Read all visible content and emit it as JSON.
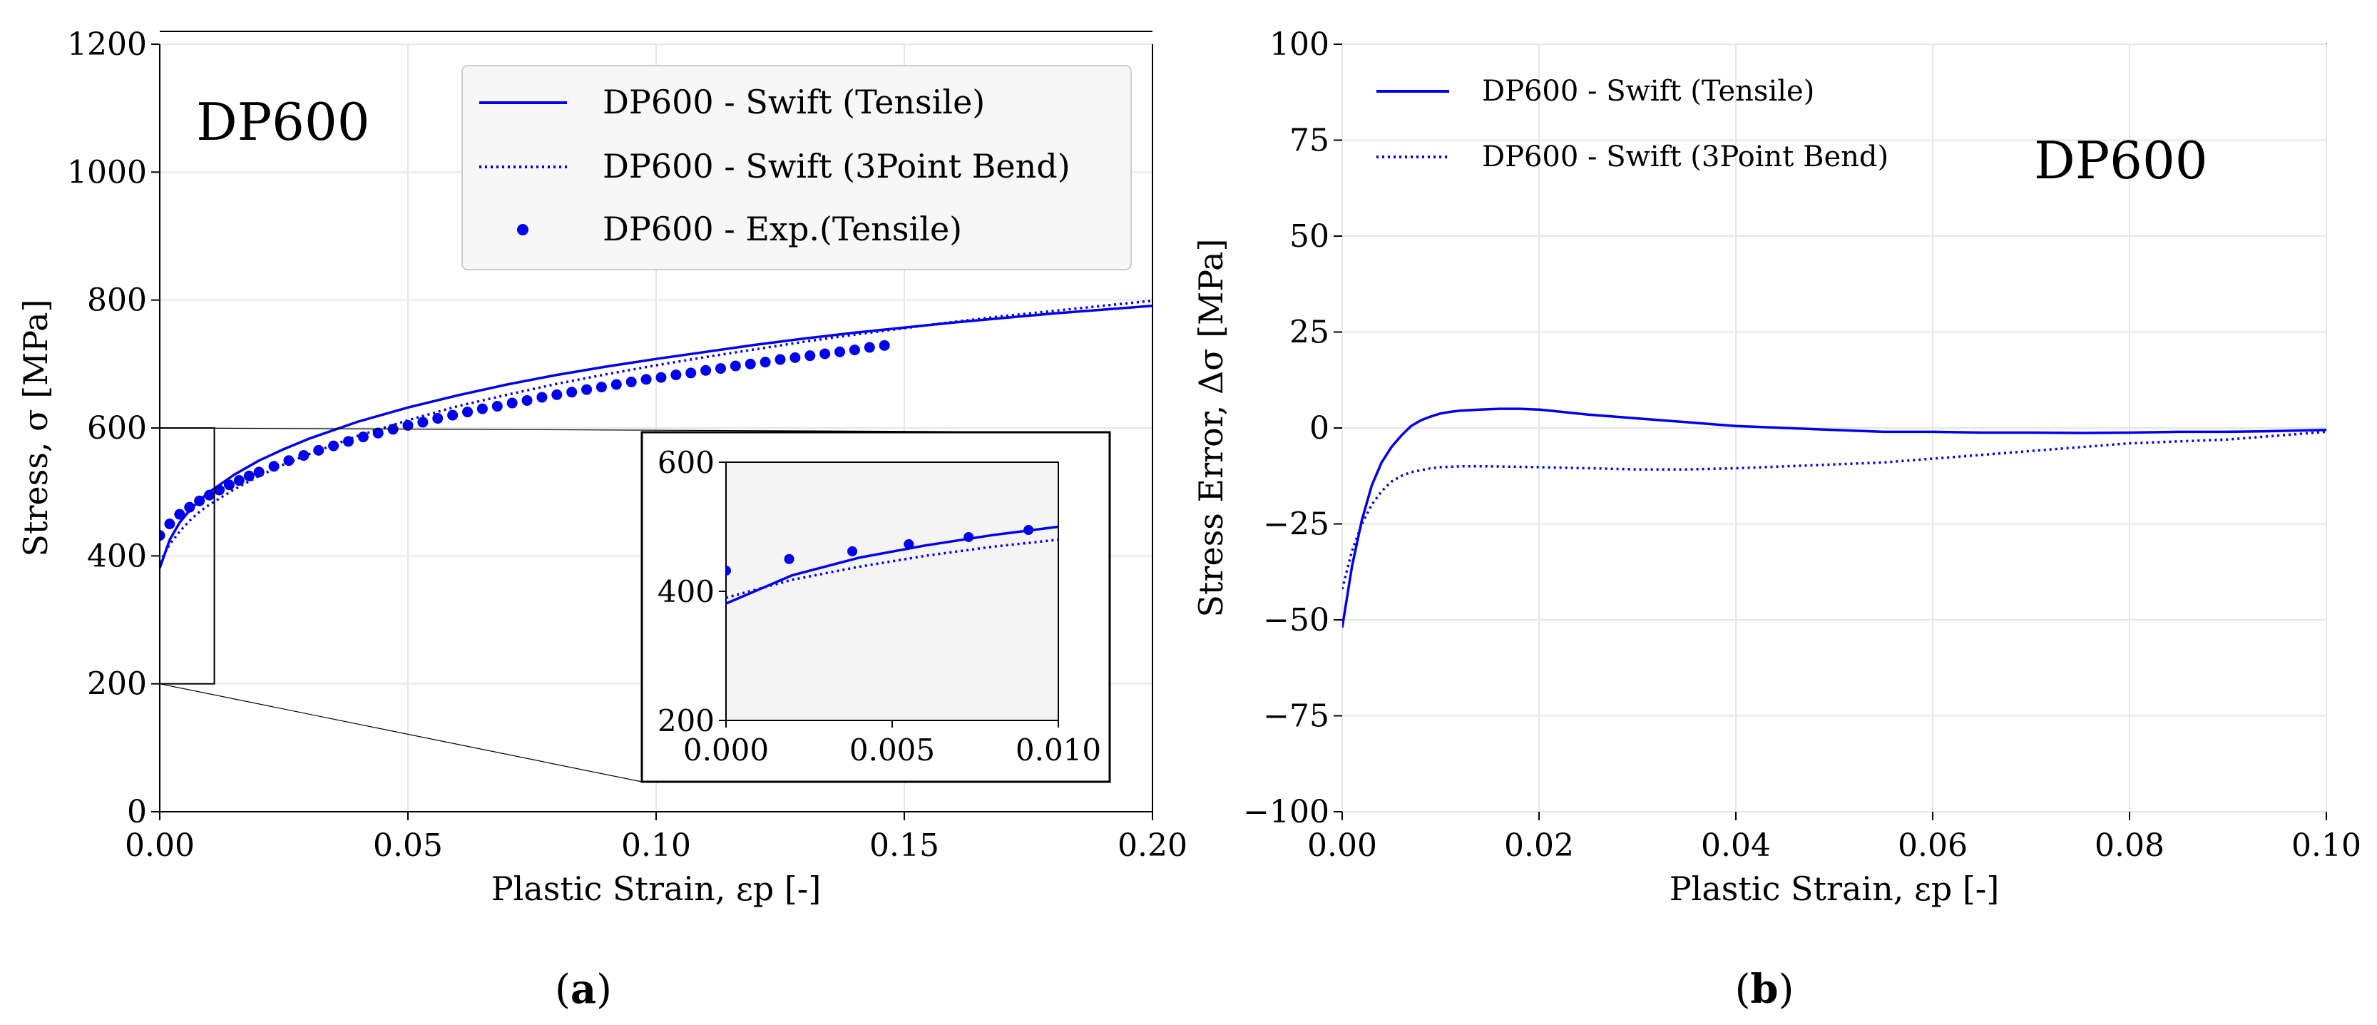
{
  "chart_data": [
    {
      "panel": "(a)",
      "panel_label": {
        "open": "(",
        "letter": "a",
        "close": ")"
      },
      "type": "line",
      "title": "DP600",
      "xlabel": "Plastic Strain, εp [-]",
      "ylabel": "Stress, σ [MPa]",
      "xlim": [
        0.0,
        0.2
      ],
      "ylim": [
        0,
        1200
      ],
      "xticks": [
        0.0,
        0.05,
        0.1,
        0.15,
        0.2
      ],
      "xtick_labels": [
        "0.00",
        "0.05",
        "0.10",
        "0.15",
        "0.20"
      ],
      "yticks": [
        0,
        200,
        400,
        600,
        800,
        1000,
        1200
      ],
      "ytick_labels": [
        "0",
        "200",
        "400",
        "600",
        "800",
        "1000",
        "1200"
      ],
      "grid": true,
      "legend_position": "top-right",
      "color": "#0000ee",
      "series": [
        {
          "name": "DP600 - Swift (Tensile)",
          "style": "solid",
          "x": [
            0.0,
            0.002,
            0.004,
            0.006,
            0.008,
            0.01,
            0.015,
            0.02,
            0.025,
            0.03,
            0.04,
            0.05,
            0.06,
            0.07,
            0.08,
            0.09,
            0.1,
            0.11,
            0.12,
            0.13,
            0.14,
            0.15,
            0.16,
            0.17,
            0.18,
            0.19,
            0.2
          ],
          "values": [
            381,
            425,
            452,
            471,
            487,
            500,
            527,
            549,
            567,
            583,
            610,
            632,
            651,
            668,
            683,
            696,
            708,
            719,
            730,
            740,
            749,
            757,
            765,
            772,
            779,
            785,
            791
          ]
        },
        {
          "name": "DP600 - Swift (3Point Bend)",
          "style": "dotted",
          "x": [
            0.0,
            0.002,
            0.004,
            0.006,
            0.008,
            0.01,
            0.015,
            0.02,
            0.025,
            0.03,
            0.04,
            0.05,
            0.06,
            0.07,
            0.08,
            0.09,
            0.1,
            0.11,
            0.12,
            0.13,
            0.14,
            0.15,
            0.16,
            0.17,
            0.18,
            0.19,
            0.2
          ],
          "values": [
            390,
            418,
            438,
            455,
            469,
            480,
            504,
            525,
            543,
            559,
            588,
            612,
            634,
            652,
            669,
            684,
            698,
            711,
            723,
            735,
            746,
            756,
            766,
            775,
            783,
            791,
            799
          ]
        },
        {
          "name": "DP600 - Exp.(Tensile)",
          "style": "markers",
          "x": [
            0.0,
            0.002,
            0.004,
            0.006,
            0.008,
            0.01,
            0.012,
            0.014,
            0.016,
            0.018,
            0.02,
            0.023,
            0.026,
            0.029,
            0.032,
            0.035,
            0.038,
            0.041,
            0.044,
            0.047,
            0.05,
            0.053,
            0.056,
            0.059,
            0.062,
            0.065,
            0.068,
            0.071,
            0.074,
            0.077,
            0.08,
            0.083,
            0.086,
            0.089,
            0.092,
            0.095,
            0.098,
            0.101,
            0.104,
            0.107,
            0.11,
            0.113,
            0.116,
            0.119,
            0.122,
            0.125,
            0.128,
            0.131,
            0.134,
            0.137,
            0.14,
            0.143,
            0.146
          ],
          "values": [
            432,
            450,
            465,
            476,
            486,
            495,
            503,
            511,
            518,
            525,
            531,
            540,
            549,
            557,
            565,
            572,
            579,
            586,
            592,
            598,
            604,
            609,
            615,
            620,
            625,
            630,
            634,
            639,
            643,
            648,
            652,
            656,
            660,
            664,
            668,
            672,
            676,
            679,
            683,
            686,
            690,
            693,
            697,
            700,
            703,
            707,
            710,
            713,
            716,
            719,
            722,
            726,
            729
          ]
        }
      ],
      "inset": {
        "xlim": [
          0.0,
          0.01
        ],
        "ylim": [
          200,
          600
        ],
        "xticks": [
          0.0,
          0.005,
          0.01
        ],
        "xtick_labels": [
          "0.000",
          "0.005",
          "0.010"
        ],
        "yticks": [
          200,
          400,
          600
        ],
        "ytick_labels": [
          "200",
          "400",
          "600"
        ],
        "zoom_region": {
          "x": [
            0.0,
            0.011
          ],
          "y": [
            200,
            600
          ]
        },
        "exp_markers": {
          "x": [
            0.0,
            0.0019,
            0.0038,
            0.0055,
            0.0073,
            0.0091
          ],
          "values": [
            432,
            450,
            462,
            473,
            484,
            495
          ]
        }
      }
    },
    {
      "panel": "(b)",
      "panel_label": {
        "open": "(",
        "letter": "b",
        "close": ")"
      },
      "type": "line",
      "title": "DP600",
      "xlabel": "Plastic Strain, εp [-]",
      "ylabel": "Stress Error, Δσ [MPa]",
      "xlim": [
        0.0,
        0.1
      ],
      "ylim": [
        -100,
        100
      ],
      "xticks": [
        0.0,
        0.02,
        0.04,
        0.06,
        0.08,
        0.1
      ],
      "xtick_labels": [
        "0.00",
        "0.02",
        "0.04",
        "0.06",
        "0.08",
        "0.10"
      ],
      "yticks": [
        -100,
        -75,
        -50,
        -25,
        0,
        25,
        50,
        75,
        100
      ],
      "ytick_labels": [
        "−100",
        "−75",
        "−50",
        "−25",
        "0",
        "25",
        "50",
        "75",
        "100"
      ],
      "grid": true,
      "legend_position": "top-left",
      "color": "#0000ee",
      "series": [
        {
          "name": "DP600 - Swift (Tensile)",
          "style": "solid",
          "x": [
            0.0,
            0.001,
            0.002,
            0.003,
            0.004,
            0.005,
            0.006,
            0.007,
            0.008,
            0.009,
            0.01,
            0.011,
            0.012,
            0.014,
            0.016,
            0.018,
            0.02,
            0.025,
            0.03,
            0.035,
            0.04,
            0.045,
            0.05,
            0.055,
            0.06,
            0.065,
            0.07,
            0.075,
            0.08,
            0.085,
            0.09,
            0.095,
            0.1
          ],
          "values": [
            -52,
            -36,
            -24,
            -15,
            -9,
            -5,
            -2,
            0.5,
            2,
            3,
            3.8,
            4.2,
            4.5,
            4.8,
            5,
            5,
            4.8,
            3.5,
            2.5,
            1.5,
            0.5,
            0,
            -0.5,
            -1,
            -1,
            -1.2,
            -1.2,
            -1.3,
            -1.2,
            -1,
            -1,
            -0.8,
            -0.5
          ]
        },
        {
          "name": "DP600 - Swift (3Point Bend)",
          "style": "dotted",
          "x": [
            0.0,
            0.001,
            0.002,
            0.003,
            0.004,
            0.005,
            0.006,
            0.007,
            0.008,
            0.009,
            0.01,
            0.012,
            0.015,
            0.02,
            0.025,
            0.03,
            0.035,
            0.04,
            0.045,
            0.05,
            0.055,
            0.06,
            0.065,
            0.07,
            0.075,
            0.08,
            0.085,
            0.09,
            0.095,
            0.1
          ],
          "values": [
            -42,
            -32,
            -25,
            -20,
            -16.5,
            -14,
            -12.5,
            -11.5,
            -11,
            -10.5,
            -10.2,
            -10,
            -10,
            -10.2,
            -10.5,
            -10.8,
            -10.8,
            -10.5,
            -10,
            -9.5,
            -9,
            -8,
            -7,
            -6,
            -5,
            -4,
            -3.5,
            -3,
            -2,
            -1
          ]
        }
      ]
    }
  ]
}
